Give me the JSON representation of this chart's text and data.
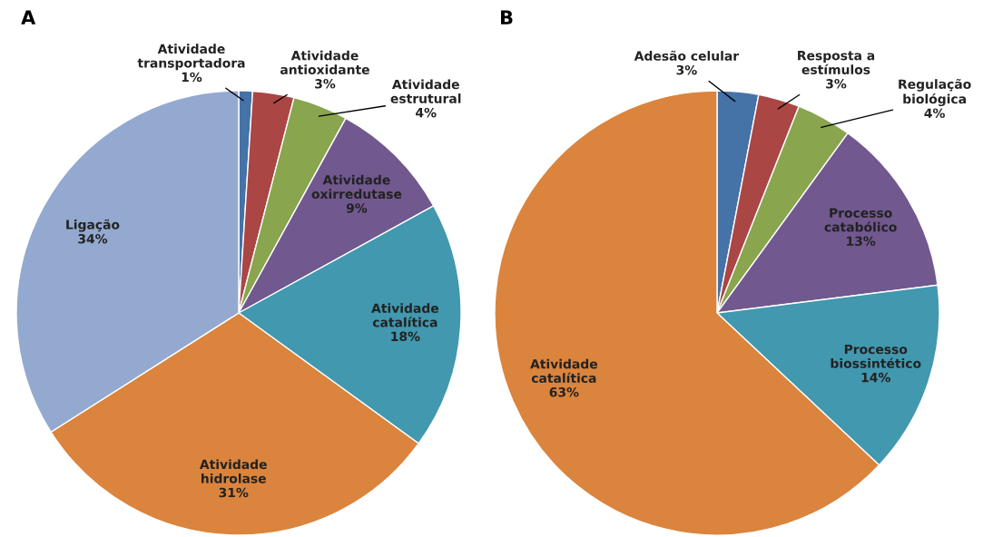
{
  "chart_data": [
    {
      "type": "pie",
      "title": "A",
      "categories": [
        "Atividade\ntransportadora",
        "Atividade\nantioxidante",
        "Atividade\nestrutural",
        "Atividade\noxirredutase",
        "Atividade\ncatalítica",
        "Atividade\nhidrolase",
        "Ligação"
      ],
      "values": [
        1,
        3,
        4,
        9,
        18,
        31,
        34
      ],
      "value_labels": [
        "1%",
        "3%",
        "4%",
        "9%",
        "18%",
        "31%",
        "34%"
      ],
      "colors": [
        "#4572a7",
        "#aa4643",
        "#89a54e",
        "#71588f",
        "#4198af",
        "#db843d",
        "#93a9cf"
      ]
    },
    {
      "type": "pie",
      "title": "B",
      "categories": [
        "Adesão celular",
        "Resposta a\nestímulos",
        "Regulação\nbiológica",
        "Processo\ncatabólico",
        "Processo\nbiossintético",
        "Atividade\ncatalítica"
      ],
      "values": [
        3,
        3,
        4,
        13,
        14,
        63
      ],
      "value_labels": [
        "3%",
        "3%",
        "4%",
        "13%",
        "14%",
        "63%"
      ],
      "colors": [
        "#4572a7",
        "#aa4643",
        "#89a54e",
        "#71588f",
        "#4198af",
        "#db843d"
      ]
    }
  ]
}
